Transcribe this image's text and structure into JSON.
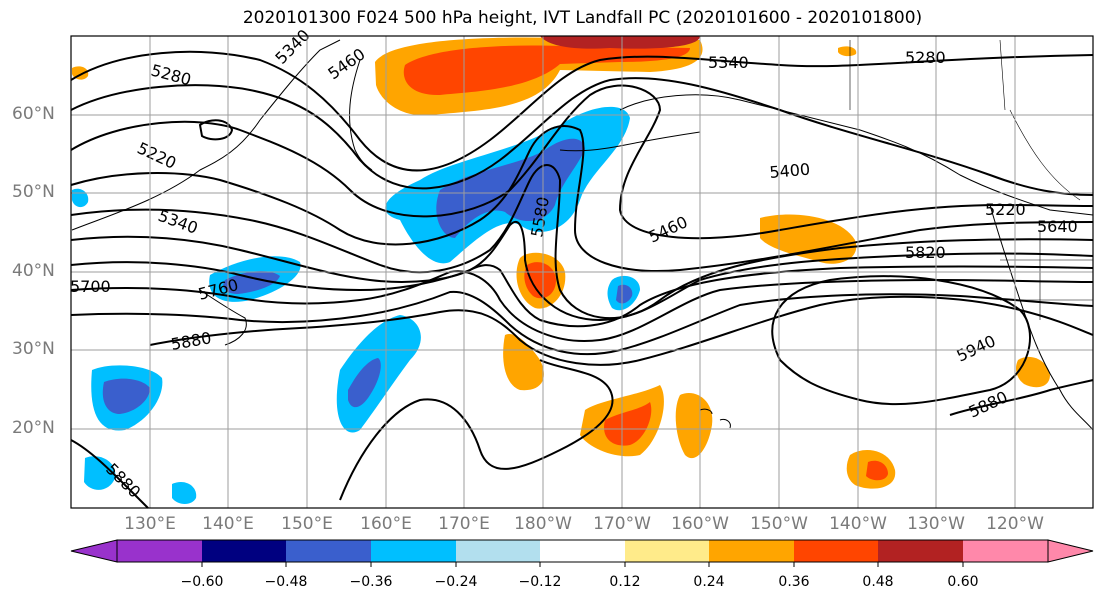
{
  "title": "2020101300 F024 500 hPa height, IVT Landfall PC (2020101600 - 2020101800)",
  "latitude_labels": [
    "60°N",
    "50°N",
    "40°N",
    "30°N",
    "20°N"
  ],
  "longitude_labels": [
    "130°E",
    "140°E",
    "150°E",
    "160°E",
    "170°E",
    "180°W",
    "170°W",
    "160°W",
    "150°W",
    "140°W",
    "130°W",
    "120°W"
  ],
  "contour_labels": [
    "5280",
    "5460",
    "5340",
    "5280",
    "5220",
    "5400",
    "5340",
    "5580",
    "5460",
    "5820",
    "5640",
    "5220",
    "5700",
    "5760",
    "5880",
    "5940",
    "5880",
    "5880",
    "5340"
  ],
  "colorbar": {
    "ticks": [
      "−0.60",
      "−0.48",
      "−0.36",
      "−0.24",
      "−0.12",
      "0.12",
      "0.24",
      "0.36",
      "0.48",
      "0.60"
    ],
    "colors": [
      "#9932cc",
      "#000080",
      "#3a5fcd",
      "#00bfff",
      "#b2dfee",
      "#ffffff",
      "#ffeb8a",
      "#ffa500",
      "#ff4500",
      "#b22222",
      "#ff88aa",
      "#ff88aa"
    ]
  },
  "map_colors": {
    "land_outline": "#000000",
    "grid": "#9e9e9e",
    "contour": "#000000"
  }
}
